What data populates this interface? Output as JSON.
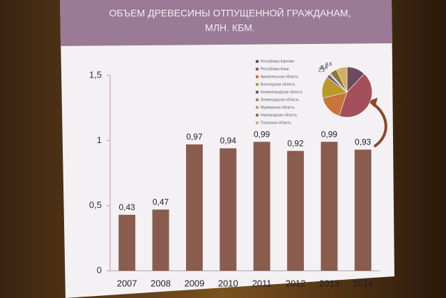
{
  "chart_data": [
    {
      "type": "bar",
      "title": "ОБЪЕМ ДРЕВЕСИНЫ ОТПУЩЕННОЙ ГРАЖДАНАМ,",
      "subtitle": "МЛН. КБМ.",
      "categories": [
        "2007",
        "2008",
        "2009",
        "2010",
        "2011",
        "2012",
        "2013",
        "2014"
      ],
      "values": [
        0.43,
        0.47,
        0.97,
        0.94,
        0.99,
        0.92,
        0.99,
        0.93
      ],
      "value_labels": [
        "0,43",
        "0,47",
        "0,97",
        "0,94",
        "0,99",
        "0,92",
        "0,99",
        "0,93"
      ],
      "color": "#8a5c4e",
      "ylim": [
        0,
        1.5
      ],
      "yticks": [
        0,
        {
          "value": 0.5,
          "label": "0,5"
        },
        1,
        {
          "value": 1.5,
          "label": "1,5"
        }
      ]
    },
    {
      "type": "pie",
      "categories": [
        "Республика Карелия",
        "Республика Коми",
        "Архангельская область",
        "Вологодская область",
        "Калининградская область",
        "Ленинградская область",
        "Мурманская область",
        "Новгородская область",
        "Псковская область"
      ],
      "values": [
        12,
        43,
        16,
        14,
        2.1,
        0.7,
        0.4,
        4.6,
        7
      ],
      "value_labels": [
        null,
        null,
        null,
        null,
        "2,1",
        "0,7",
        "0,4",
        "4,6",
        null
      ],
      "colors": [
        "#6e4a5e",
        "#a3505a",
        "#c8743a",
        "#b89a2a",
        "#6a5a8a",
        "#9a8a6a",
        "#c0a070",
        "#8a7a3a",
        "#d0b060"
      ]
    }
  ]
}
